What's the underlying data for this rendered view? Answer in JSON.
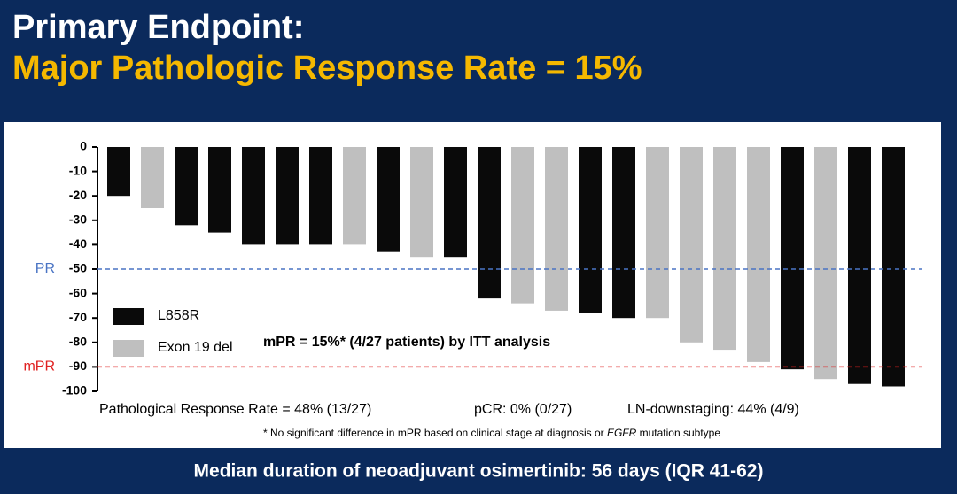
{
  "header": {
    "title": "Primary Endpoint:",
    "subtitle": "Major Pathologic Response Rate = 15%"
  },
  "chart_data": {
    "type": "bar",
    "series": [
      {
        "name": "L858R",
        "color": "#0a0a0a",
        "values": [
          -20,
          null,
          -32,
          -35,
          -40,
          -40,
          -40,
          null,
          -43,
          null,
          -45,
          -62,
          null,
          null,
          -68,
          -70,
          null,
          null,
          null,
          null,
          -91,
          null,
          -97,
          -98
        ]
      },
      {
        "name": "Exon 19 del",
        "color": "#bfbfbf",
        "values": [
          null,
          -25,
          null,
          null,
          null,
          null,
          null,
          -40,
          null,
          -45,
          null,
          null,
          -64,
          -67,
          null,
          null,
          -70,
          -80,
          -83,
          -88,
          null,
          -95,
          null,
          null
        ]
      }
    ],
    "ylim": [
      -100,
      0
    ],
    "yticks": [
      0,
      -10,
      -20,
      -30,
      -40,
      -50,
      -60,
      -70,
      -80,
      -90,
      -100
    ],
    "reference_lines": [
      {
        "label": "PR",
        "value": -50,
        "color": "#4a74c4"
      },
      {
        "label": "mPR",
        "value": -90,
        "color": "#e02020"
      }
    ],
    "annotation": "mPR = 15%* (4/27 patients) by ITT analysis",
    "notes": [
      "Pathological Response Rate = 48% (13/27)",
      "pCR: 0% (0/27)",
      "LN-downstaging: 44% (4/9)"
    ],
    "footnote": [
      "* No significant difference in mPR based on clinical stage at diagnosis or ",
      "EGFR",
      " mutation subtype"
    ]
  },
  "footer": "Median duration of neoadjuvant osimertinib: 56 days (IQR 41-62)"
}
